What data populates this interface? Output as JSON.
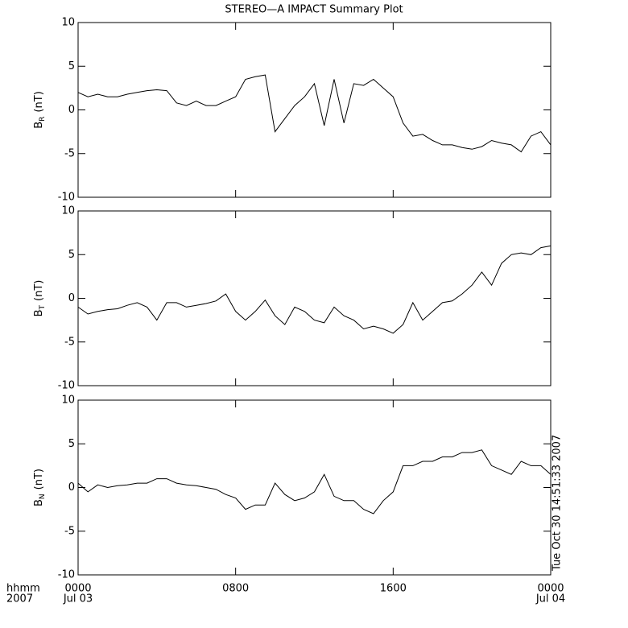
{
  "chart_data": [
    {
      "type": "line",
      "title": "STEREO—A IMPACT Summary Plot",
      "ylabel": [
        "B",
        "R",
        "(nT)"
      ],
      "color": "#000000",
      "xlim": [
        0,
        24
      ],
      "xticks": [
        0,
        8,
        16,
        24
      ],
      "ylim": [
        -10,
        10
      ],
      "yticks": [
        -10,
        -5,
        0,
        5,
        10
      ],
      "x": [
        0,
        0.5,
        1,
        1.5,
        2,
        2.5,
        3,
        3.5,
        4,
        4.5,
        5,
        5.5,
        6,
        6.5,
        7,
        7.5,
        8,
        8.5,
        9,
        9.5,
        10,
        10.5,
        11,
        11.5,
        12,
        12.5,
        13,
        13.5,
        14,
        14.5,
        15,
        15.5,
        16,
        16.5,
        17,
        17.5,
        18,
        18.5,
        19,
        19.5,
        20,
        20.5,
        21,
        21.5,
        22,
        22.5,
        23,
        23.5,
        24
      ],
      "values": [
        2,
        1.5,
        1.8,
        1.5,
        1.5,
        1.8,
        2.0,
        2.2,
        2.3,
        2.2,
        0.8,
        0.5,
        1.0,
        0.5,
        0.5,
        1.0,
        1.5,
        3.5,
        3.8,
        4.0,
        -2.5,
        -1.0,
        0.5,
        1.5,
        3.0,
        -1.8,
        3.5,
        -1.5,
        3.0,
        2.8,
        3.5,
        2.5,
        1.5,
        -1.5,
        -3.0,
        -2.8,
        -3.5,
        -4.0,
        -4.0,
        -4.3,
        -4.5,
        -4.2,
        -3.5,
        -3.8,
        -4.0,
        -4.8,
        -3.0,
        -2.5,
        -4.0
      ]
    },
    {
      "type": "line",
      "ylabel": [
        "B",
        "T",
        "(nT)"
      ],
      "color": "#000000",
      "xlim": [
        0,
        24
      ],
      "xticks": [
        0,
        8,
        16,
        24
      ],
      "ylim": [
        -10,
        10
      ],
      "yticks": [
        -10,
        -5,
        0,
        5,
        10
      ],
      "x": [
        0,
        0.5,
        1,
        1.5,
        2,
        2.5,
        3,
        3.5,
        4,
        4.5,
        5,
        5.5,
        6,
        6.5,
        7,
        7.5,
        8,
        8.5,
        9,
        9.5,
        10,
        10.5,
        11,
        11.5,
        12,
        12.5,
        13,
        13.5,
        14,
        14.5,
        15,
        15.5,
        16,
        16.5,
        17,
        17.5,
        18,
        18.5,
        19,
        19.5,
        20,
        20.5,
        21,
        21.5,
        22,
        22.5,
        23,
        23.5,
        24
      ],
      "values": [
        -1.0,
        -1.8,
        -1.5,
        -1.3,
        -1.2,
        -0.8,
        -0.5,
        -1.0,
        -2.5,
        -0.5,
        -0.5,
        -1.0,
        -0.8,
        -0.6,
        -0.3,
        0.5,
        -1.5,
        -2.5,
        -1.5,
        -0.2,
        -2.0,
        -3.0,
        -1.0,
        -1.5,
        -2.5,
        -2.8,
        -1.0,
        -2.0,
        -2.5,
        -3.5,
        -3.2,
        -3.5,
        -4.0,
        -3.0,
        -0.5,
        -2.5,
        -1.5,
        -0.5,
        -0.3,
        0.5,
        1.5,
        3.0,
        1.5,
        4.0,
        5.0,
        5.2,
        5.0,
        5.8,
        6.0
      ]
    },
    {
      "type": "line",
      "ylabel": [
        "B",
        "N",
        "(nT)"
      ],
      "color": "#000000",
      "xlim": [
        0,
        24
      ],
      "xticks": [
        {
          "value": 0,
          "label": "0000"
        },
        {
          "value": 8,
          "label": "0800"
        },
        {
          "value": 16,
          "label": "1600"
        },
        {
          "value": 24,
          "label": "0000"
        }
      ],
      "x_date_labels": [
        {
          "value": 0,
          "label": "Jul 03"
        },
        {
          "value": 24,
          "label": "Jul 04"
        }
      ],
      "x_axis_label": [
        "hhmm",
        "2007"
      ],
      "timestamp": "Tue Oct 30 14:51:33 2007",
      "ylim": [
        -10,
        10
      ],
      "yticks": [
        -10,
        -5,
        0,
        5,
        10
      ],
      "x": [
        0,
        0.5,
        1,
        1.5,
        2,
        2.5,
        3,
        3.5,
        4,
        4.5,
        5,
        5.5,
        6,
        6.5,
        7,
        7.5,
        8,
        8.5,
        9,
        9.5,
        10,
        10.5,
        11,
        11.5,
        12,
        12.5,
        13,
        13.5,
        14,
        14.5,
        15,
        15.5,
        16,
        16.5,
        17,
        17.5,
        18,
        18.5,
        19,
        19.5,
        20,
        20.5,
        21,
        21.5,
        22,
        22.5,
        23,
        23.5,
        24
      ],
      "values": [
        0.5,
        -0.5,
        0.3,
        0.0,
        0.2,
        0.3,
        0.5,
        0.5,
        1.0,
        1.0,
        0.5,
        0.3,
        0.2,
        0.0,
        -0.2,
        -0.8,
        -1.2,
        -2.5,
        -2.0,
        -2.0,
        0.5,
        -0.8,
        -1.5,
        -1.2,
        -0.5,
        1.5,
        -1.0,
        -1.5,
        -1.5,
        -2.5,
        -3.0,
        -1.5,
        -0.5,
        2.5,
        2.5,
        3.0,
        3.0,
        3.5,
        3.5,
        4.0,
        4.0,
        4.3,
        2.5,
        2.0,
        1.5,
        3.0,
        2.5,
        2.5,
        1.5
      ]
    }
  ]
}
